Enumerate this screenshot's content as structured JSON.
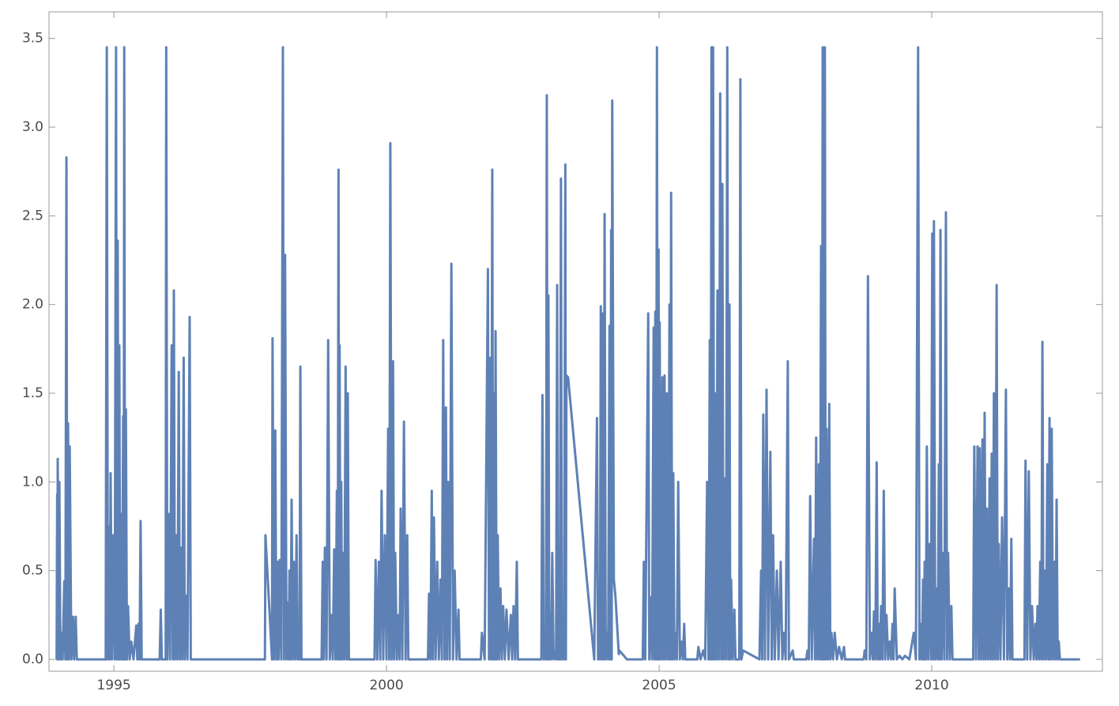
{
  "chart_data": {
    "type": "line",
    "color": "#5e81b5",
    "xlim": [
      1993.81,
      2013.13
    ],
    "ylim": [
      -0.067,
      3.65
    ],
    "xticks": [
      1995,
      2000,
      2005,
      2010
    ],
    "yticks": [
      {
        "value": 0,
        "label": "0.0"
      },
      0.5,
      {
        "value": 1,
        "label": "1.0"
      },
      1.5,
      {
        "value": 2,
        "label": "2.0"
      },
      2.5,
      {
        "value": 3,
        "label": "3.0"
      },
      3.5
    ],
    "x": [
      1993.95,
      1993.96,
      1993.965,
      1993.97,
      1993.985,
      1994.0,
      1994.02,
      1994.04,
      1994.06,
      1994.09,
      1994.11,
      1994.13,
      1994.145,
      1994.16,
      1994.175,
      1994.19,
      1994.22,
      1994.25,
      1994.27,
      1994.3,
      1994.32,
      1994.85,
      1994.87,
      1994.89,
      1994.91,
      1994.925,
      1994.94,
      1994.965,
      1994.99,
      1995.015,
      1995.04,
      1995.055,
      1995.07,
      1995.085,
      1995.1,
      1995.115,
      1995.13,
      1995.15,
      1995.17,
      1995.18,
      1995.19,
      1995.205,
      1995.22,
      1995.24,
      1995.26,
      1995.29,
      1995.32,
      1995.36,
      1995.41,
      1995.43,
      1995.45,
      1995.47,
      1995.49,
      1995.51,
      1995.84,
      1995.86,
      1995.88,
      1995.95,
      1995.96,
      1995.98,
      1996.0,
      1996.03,
      1996.06,
      1996.08,
      1996.1,
      1996.12,
      1996.14,
      1996.165,
      1996.19,
      1996.21,
      1996.23,
      1996.255,
      1996.28,
      1996.3,
      1996.32,
      1996.35,
      1996.39,
      1996.41,
      1997.77,
      1997.78,
      1997.9,
      1997.91,
      1997.935,
      1997.96,
      1997.98,
      1998.0,
      1998.02,
      1998.04,
      1998.07,
      1998.1,
      1998.12,
      1998.14,
      1998.165,
      1998.19,
      1998.205,
      1998.22,
      1998.24,
      1998.26,
      1998.28,
      1998.3,
      1998.325,
      1998.35,
      1998.37,
      1998.39,
      1998.405,
      1998.42,
      1998.44,
      1998.81,
      1998.83,
      1998.85,
      1998.87,
      1998.9,
      1998.93,
      1998.96,
      1998.99,
      1999.015,
      1999.04,
      1999.065,
      1999.09,
      1999.105,
      1999.12,
      1999.13,
      1999.14,
      1999.155,
      1999.17,
      1999.185,
      1999.2,
      1999.225,
      1999.25,
      1999.27,
      1999.29,
      1999.31,
      1999.78,
      1999.8,
      1999.83,
      1999.86,
      1999.885,
      1999.91,
      1999.94,
      1999.97,
      2000.0,
      2000.03,
      2000.05,
      2000.07,
      2000.095,
      2000.12,
      2000.14,
      2000.16,
      2000.19,
      2000.22,
      2000.24,
      2000.26,
      2000.29,
      2000.32,
      2000.35,
      2000.38,
      2000.4,
      2000.76,
      2000.78,
      2000.805,
      2000.83,
      2000.85,
      2000.87,
      2000.9,
      2000.93,
      2000.96,
      2000.99,
      2001.015,
      2001.04,
      2001.065,
      2001.09,
      2001.11,
      2001.13,
      2001.16,
      2001.19,
      2001.22,
      2001.25,
      2001.285,
      2001.32,
      2001.34,
      2001.73,
      2001.75,
      2001.8,
      2001.86,
      2001.88,
      2001.9,
      2001.92,
      2001.94,
      2001.955,
      2001.97,
      2001.985,
      2002.0,
      2002.02,
      2002.04,
      2002.065,
      2002.09,
      2002.115,
      2002.14,
      2002.17,
      2002.2,
      2002.24,
      2002.28,
      2002.305,
      2002.33,
      2002.36,
      2002.39,
      2002.41,
      2002.84,
      2002.86,
      2002.885,
      2002.91,
      2002.925,
      2002.94,
      2002.955,
      2002.97,
      2002.985,
      2003.0,
      2003.02,
      2003.04,
      2003.065,
      2003.09,
      2003.11,
      2003.13,
      2003.145,
      2003.16,
      2003.18,
      2003.2,
      2003.215,
      2003.23,
      2003.255,
      2003.28,
      2003.29,
      2003.3,
      2003.33,
      2003.81,
      2003.86,
      2003.88,
      2003.9,
      2003.915,
      2003.93,
      2003.95,
      2003.97,
      2003.985,
      2004.0,
      2004.02,
      2004.04,
      2004.065,
      2004.09,
      2004.105,
      2004.12,
      2004.13,
      2004.14,
      2004.17,
      2004.2,
      2004.26,
      2004.27,
      2004.41,
      2004.7,
      2004.72,
      2004.745,
      2004.8,
      2004.82,
      2004.84,
      2004.87,
      2004.9,
      2004.915,
      2004.93,
      2004.945,
      2004.96,
      2004.975,
      2004.99,
      2005.0,
      2005.01,
      2005.035,
      2005.06,
      2005.08,
      2005.1,
      2005.12,
      2005.14,
      2005.165,
      2005.19,
      2005.205,
      2005.22,
      2005.24,
      2005.26,
      2005.28,
      2005.3,
      2005.325,
      2005.35,
      2005.38,
      2005.41,
      2005.435,
      2005.46,
      2005.48,
      2005.7,
      2005.72,
      2005.76,
      2005.81,
      2005.845,
      2005.88,
      2005.905,
      2005.93,
      2005.945,
      2005.96,
      2005.975,
      2005.99,
      2006.01,
      2006.03,
      2006.05,
      2006.07,
      2006.095,
      2006.12,
      2006.14,
      2006.16,
      2006.18,
      2006.2,
      2006.225,
      2006.25,
      2006.27,
      2006.29,
      2006.305,
      2006.32,
      2006.35,
      2006.38,
      2006.4,
      2006.47,
      2006.49,
      2006.51,
      2006.54,
      2006.84,
      2006.87,
      2006.89,
      2006.91,
      2006.94,
      2006.97,
      2007.0,
      2007.04,
      2007.065,
      2007.09,
      2007.12,
      2007.16,
      2007.19,
      2007.23,
      2007.26,
      2007.29,
      2007.32,
      2007.36,
      2007.38,
      2007.45,
      2007.47,
      2007.7,
      2007.72,
      2007.745,
      2007.77,
      2007.8,
      2007.84,
      2007.86,
      2007.88,
      2007.905,
      2007.93,
      2007.95,
      2007.97,
      2007.985,
      2008.0,
      2008.02,
      2008.04,
      2008.055,
      2008.07,
      2008.095,
      2008.12,
      2008.14,
      2008.16,
      2008.19,
      2008.22,
      2008.26,
      2008.3,
      2008.35,
      2008.39,
      2008.41,
      2008.75,
      2008.77,
      2008.8,
      2008.83,
      2008.865,
      2008.9,
      2008.92,
      2008.94,
      2008.965,
      2008.99,
      2009.01,
      2009.03,
      2009.05,
      2009.07,
      2009.095,
      2009.12,
      2009.145,
      2009.17,
      2009.2,
      2009.23,
      2009.255,
      2009.28,
      2009.3,
      2009.32,
      2009.36,
      2009.41,
      2009.46,
      2009.51,
      2009.59,
      2009.67,
      2009.71,
      2009.75,
      2009.775,
      2009.8,
      2009.82,
      2009.84,
      2009.855,
      2009.87,
      2009.89,
      2009.91,
      2009.935,
      2009.96,
      2009.985,
      2010.01,
      2010.025,
      2010.04,
      2010.065,
      2010.09,
      2010.11,
      2010.13,
      2010.145,
      2010.16,
      2010.18,
      2010.2,
      2010.23,
      2010.26,
      2010.28,
      2010.3,
      2010.33,
      2010.36,
      2010.38,
      2010.76,
      2010.78,
      2010.81,
      2010.84,
      2010.86,
      2010.88,
      2010.905,
      2010.93,
      2010.95,
      2010.97,
      2010.99,
      2011.01,
      2011.035,
      2011.06,
      2011.08,
      2011.1,
      2011.12,
      2011.14,
      2011.165,
      2011.19,
      2011.21,
      2011.23,
      2011.26,
      2011.29,
      2011.325,
      2011.36,
      2011.385,
      2011.41,
      2011.435,
      2011.46,
      2011.48,
      2011.7,
      2011.72,
      2011.75,
      2011.78,
      2011.81,
      2011.84,
      2011.87,
      2011.9,
      2011.92,
      2011.94,
      2011.965,
      2011.99,
      2012.01,
      2012.03,
      2012.05,
      2012.07,
      2012.095,
      2012.12,
      2012.14,
      2012.16,
      2012.18,
      2012.2,
      2012.225,
      2012.25,
      2012.27,
      2012.29,
      2012.31,
      2012.33,
      2012.35,
      2012.72
    ],
    "values": [
      0,
      0.93,
      0,
      1.13,
      0,
      1.0,
      0,
      0.15,
      0,
      0.44,
      0,
      2.83,
      0,
      1.33,
      0,
      1.2,
      0,
      0.24,
      0,
      0.24,
      0,
      0,
      3.45,
      0,
      0.75,
      0,
      1.05,
      0,
      0.7,
      0,
      3.45,
      0,
      2.36,
      0,
      1.77,
      0,
      0.82,
      0,
      1.37,
      0,
      3.45,
      0,
      1.41,
      0,
      0.3,
      0,
      0.1,
      0,
      0.19,
      0,
      0.2,
      0,
      0.78,
      0,
      0,
      0.28,
      0,
      0,
      3.45,
      0,
      0.82,
      0,
      1.77,
      0,
      2.08,
      0,
      0.7,
      0,
      1.62,
      0,
      0.63,
      0,
      1.7,
      0,
      0.36,
      0,
      1.93,
      0,
      0,
      0.7,
      0,
      1.81,
      0,
      1.29,
      0,
      0.55,
      0,
      0.56,
      0,
      3.45,
      0,
      2.28,
      0,
      0.32,
      0,
      0.5,
      0,
      0.9,
      0,
      0.55,
      0,
      0.7,
      0,
      0.15,
      0,
      1.65,
      0,
      0,
      0.55,
      0,
      0.63,
      0,
      1.8,
      0,
      0.25,
      0,
      0.62,
      0,
      0.95,
      0,
      2.76,
      0,
      1.77,
      0,
      1.0,
      0,
      0.6,
      0,
      1.65,
      0,
      1.5,
      0,
      0,
      0.56,
      0,
      0.55,
      0,
      0.95,
      0,
      0.7,
      0,
      1.3,
      0,
      2.91,
      0,
      1.68,
      0,
      0.6,
      0,
      0.25,
      0,
      0.85,
      0,
      1.34,
      0,
      0.7,
      0,
      0,
      0.37,
      0,
      0.95,
      0,
      0.8,
      0,
      0.55,
      0,
      0.45,
      0,
      1.8,
      0,
      1.42,
      0,
      1.0,
      0,
      2.23,
      0,
      0.5,
      0,
      0.28,
      0,
      0,
      0.15,
      0,
      2.2,
      0,
      1.7,
      0,
      2.76,
      0,
      1.5,
      0,
      1.85,
      0,
      0.7,
      0,
      0.4,
      0,
      0.3,
      0,
      0.28,
      0,
      0.25,
      0,
      0.3,
      0,
      0.55,
      0,
      0,
      1.49,
      0,
      0.1,
      0,
      3.18,
      0,
      2.05,
      0,
      0.25,
      0,
      0.6,
      0,
      0.05,
      0,
      2.11,
      0,
      0.25,
      0,
      2.71,
      0,
      0.07,
      0,
      2.79,
      0,
      1.6,
      1.59,
      0,
      1.36,
      0,
      0.05,
      0,
      1.99,
      0,
      1.95,
      0,
      2.51,
      0,
      0.15,
      0,
      1.88,
      0,
      2.42,
      0,
      3.15,
      0.45,
      0.35,
      0.03,
      0.05,
      0,
      0,
      0.55,
      0,
      1.95,
      0,
      0.35,
      0,
      1.87,
      0,
      1.96,
      0,
      3.45,
      0,
      2.31,
      0,
      1.9,
      0,
      1.59,
      0,
      1.6,
      0,
      1.5,
      0,
      2.0,
      0,
      2.63,
      0,
      1.05,
      0,
      0.15,
      0,
      1.0,
      0,
      0.1,
      0,
      0.2,
      0,
      0,
      0.07,
      0,
      0.05,
      0,
      1.0,
      0,
      1.8,
      0,
      3.45,
      0,
      3.45,
      0,
      1.5,
      0,
      2.08,
      0,
      3.19,
      0,
      2.68,
      0,
      1.02,
      0,
      3.45,
      0,
      2.0,
      0,
      0.45,
      0,
      0.28,
      0,
      0,
      3.27,
      0,
      0.05,
      0,
      0.5,
      0,
      1.38,
      0,
      1.52,
      0,
      1.17,
      0,
      0.7,
      0,
      0.5,
      0,
      0.55,
      0,
      0.15,
      0,
      1.68,
      0,
      0.05,
      0,
      0,
      0.05,
      0,
      0.92,
      0,
      0.68,
      0,
      1.25,
      0,
      1.1,
      0,
      2.33,
      0,
      3.45,
      0,
      3.45,
      0,
      1.3,
      0,
      1.44,
      0,
      0.15,
      0,
      0.15,
      0,
      0.07,
      0,
      0.07,
      0,
      0,
      0.05,
      0,
      2.16,
      0,
      0.15,
      0,
      0.27,
      0,
      1.11,
      0,
      0.2,
      0,
      0.3,
      0,
      0.95,
      0,
      0.25,
      0,
      0.1,
      0,
      0.2,
      0,
      0.4,
      0,
      0.02,
      0,
      0.02,
      0,
      0.15,
      0,
      3.45,
      0,
      0.2,
      0,
      0.45,
      0,
      0.55,
      0,
      1.2,
      0,
      0.65,
      0,
      2.4,
      0,
      2.47,
      0,
      0.4,
      0,
      1.1,
      0,
      2.42,
      0,
      0.6,
      0,
      2.52,
      0,
      0.6,
      0,
      0.3,
      0,
      0,
      1.2,
      0,
      1.2,
      0,
      1.19,
      0,
      1.24,
      0,
      1.39,
      0,
      0.85,
      0,
      1.02,
      0,
      1.16,
      0,
      1.5,
      0,
      2.11,
      0,
      0.65,
      0,
      0.8,
      0,
      1.52,
      0,
      0.4,
      0,
      0.68,
      0,
      0,
      1.12,
      0,
      1.06,
      0,
      0.3,
      0,
      0.2,
      0,
      0.3,
      0,
      0.55,
      0,
      1.79,
      0,
      0.5,
      0,
      1.1,
      0,
      1.36,
      0,
      1.3,
      0,
      0.55,
      0,
      0.9,
      0,
      0.1,
      0,
      0
    ]
  }
}
